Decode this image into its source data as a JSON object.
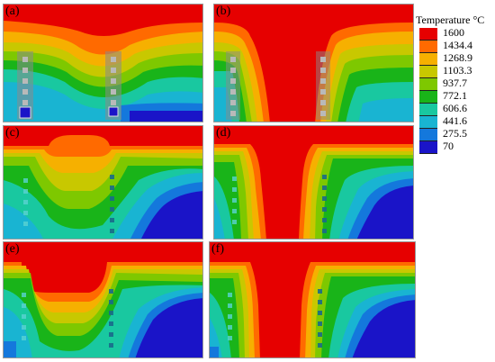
{
  "panels": [
    {
      "label": "(a)"
    },
    {
      "label": "(b)"
    },
    {
      "label": "(c)"
    },
    {
      "label": "(d)"
    },
    {
      "label": "(e)"
    },
    {
      "label": "(f)"
    }
  ],
  "legend": {
    "title": "Temperature °C",
    "values": [
      "1600",
      "1434.4",
      "1268.9",
      "1103.3",
      "937.7",
      "772.1",
      "606.6",
      "441.6",
      "275.5",
      "70"
    ],
    "colors": [
      "#e60000",
      "#ff6a00",
      "#f6b000",
      "#c8c800",
      "#7ec800",
      "#19b419",
      "#19c8a0",
      "#19b4d2",
      "#1478dc",
      "#1a14c8"
    ]
  }
}
